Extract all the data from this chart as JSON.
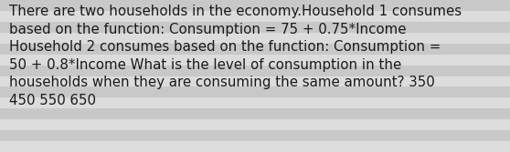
{
  "text": "There are two households in the economy.Household 1 consumes\nbased on the function: Consumption = 75 + 0.75*Income\nHousehold 2 consumes based on the function: Consumption =\n50 + 0.8*Income What is the level of consumption in the\nhouseholds when they are consuming the same amount? 350\n450 550 650",
  "background_color": "#d4d4d4",
  "stripe_light": "#dcdcdc",
  "stripe_dark": "#c8c8c8",
  "text_color": "#1a1a1a",
  "font_size": 10.8,
  "fig_width": 5.58,
  "fig_height": 1.67,
  "dpi": 100
}
